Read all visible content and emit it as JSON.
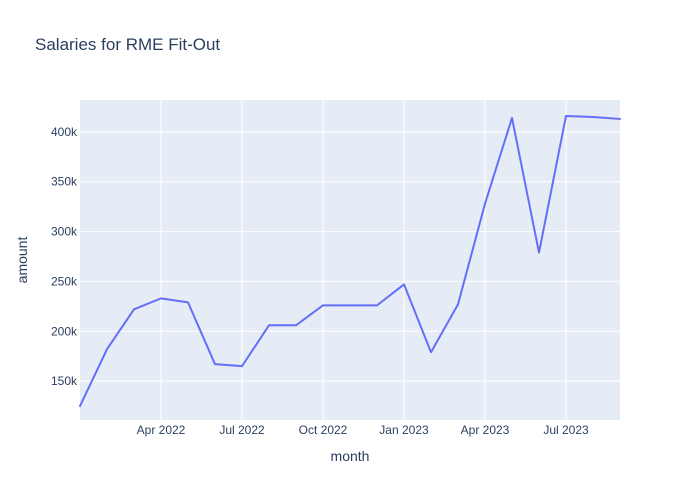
{
  "chart_data": {
    "type": "line",
    "title": "Salaries for RME Fit-Out",
    "xlabel": "month",
    "ylabel": "amount",
    "x": [
      "2022-01",
      "2022-02",
      "2022-03",
      "2022-04",
      "2022-05",
      "2022-06",
      "2022-07",
      "2022-08",
      "2022-09",
      "2022-10",
      "2022-11",
      "2022-12",
      "2023-01",
      "2023-02",
      "2023-03",
      "2023-04",
      "2023-05",
      "2023-06",
      "2023-07",
      "2023-08",
      "2023-09"
    ],
    "series": [
      {
        "values": [
          125000,
          182000,
          222000,
          233000,
          229000,
          167000,
          165000,
          206000,
          206000,
          226000,
          226000,
          226000,
          247000,
          179000,
          227000,
          328000,
          414000,
          279000,
          416000,
          415000,
          413000
        ]
      }
    ],
    "x_ticks": [
      {
        "date": "2022-04",
        "label": "Apr 2022"
      },
      {
        "date": "2022-07",
        "label": "Jul 2022"
      },
      {
        "date": "2022-10",
        "label": "Oct 2022"
      },
      {
        "date": "2023-01",
        "label": "Jan 2023"
      },
      {
        "date": "2023-04",
        "label": "Apr 2023"
      },
      {
        "date": "2023-07",
        "label": "Jul 2023"
      }
    ],
    "y_ticks": [
      {
        "value": 150000,
        "label": "150k"
      },
      {
        "value": 200000,
        "label": "200k"
      },
      {
        "value": 250000,
        "label": "250k"
      },
      {
        "value": 300000,
        "label": "300k"
      },
      {
        "value": 350000,
        "label": "350k"
      },
      {
        "value": 400000,
        "label": "400k"
      }
    ],
    "xlim": [
      "2022-01",
      "2023-09"
    ],
    "ylim": [
      111000,
      432000
    ],
    "grid": true,
    "colors": {
      "plot_background": "#e5ecf6",
      "line": "#636efa",
      "text": "#2a3f5f",
      "grid": "#ffffff"
    }
  }
}
